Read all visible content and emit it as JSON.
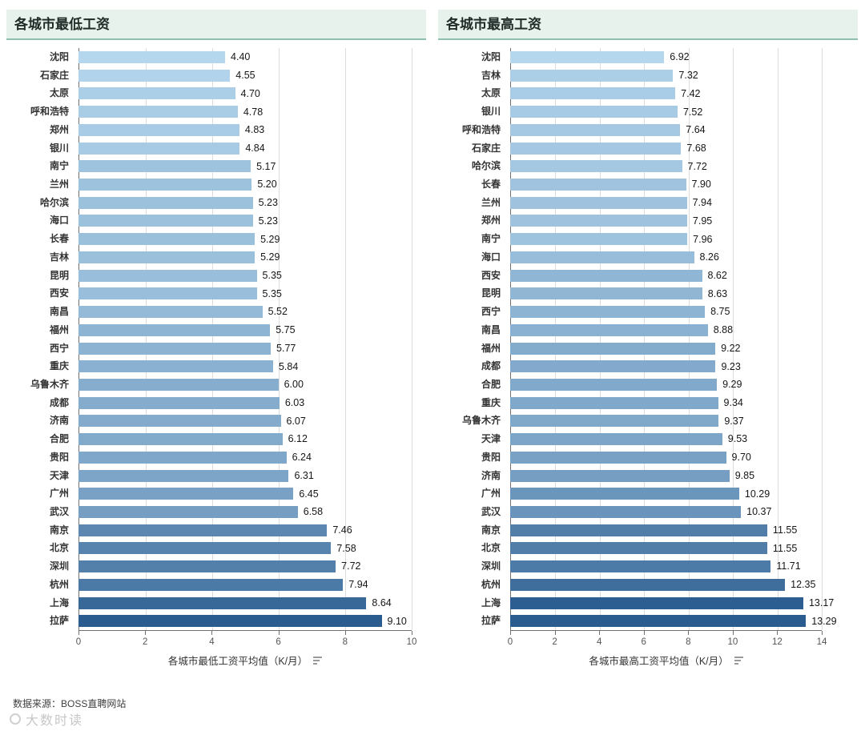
{
  "page": {
    "source_note": "数据来源：BOSS直聘网站",
    "watermark": "大数时读"
  },
  "theme": {
    "header_bg": "#e7f2ec",
    "header_line": "#8fc0ad",
    "title_text": "#1e2b27",
    "label_text": "#333333",
    "value_text": "#161616",
    "tick_text": "#555555",
    "source_text": "#3f3f3f",
    "grid_line": "#dcdcdc",
    "axis_line": "#707070",
    "bar_min": "#b5d7ee",
    "bar_max": "#2a5c8f"
  },
  "chart_data": [
    {
      "type": "bar",
      "orientation": "horizontal",
      "title": "各城市最低工资",
      "xlabel": "各城市最低工资平均值（K/月）",
      "ylabel": "",
      "xlim": [
        0,
        10
      ],
      "xticks": [
        0,
        2,
        4,
        6,
        8,
        10
      ],
      "grid": true,
      "legend": false,
      "color_scale": "sequential-blues-by-value",
      "categories": [
        "沈阳",
        "石家庄",
        "太原",
        "呼和浩特",
        "郑州",
        "银川",
        "南宁",
        "兰州",
        "哈尔滨",
        "海口",
        "长春",
        "吉林",
        "昆明",
        "西安",
        "南昌",
        "福州",
        "西宁",
        "重庆",
        "乌鲁木齐",
        "成都",
        "济南",
        "合肥",
        "贵阳",
        "天津",
        "广州",
        "武汉",
        "南京",
        "北京",
        "深圳",
        "杭州",
        "上海",
        "拉萨"
      ],
      "values": [
        4.4,
        4.55,
        4.7,
        4.78,
        4.83,
        4.84,
        5.17,
        5.2,
        5.23,
        5.23,
        5.29,
        5.29,
        5.35,
        5.35,
        5.52,
        5.75,
        5.77,
        5.84,
        6.0,
        6.03,
        6.07,
        6.12,
        6.24,
        6.31,
        6.45,
        6.58,
        7.46,
        7.58,
        7.72,
        7.94,
        8.64,
        9.1
      ]
    },
    {
      "type": "bar",
      "orientation": "horizontal",
      "title": "各城市最高工资",
      "xlabel": "各城市最高工资平均值（K/月）",
      "ylabel": "",
      "xlim": [
        0,
        14
      ],
      "xticks": [
        0,
        2,
        4,
        6,
        8,
        10,
        12,
        14
      ],
      "grid": true,
      "legend": false,
      "color_scale": "sequential-blues-by-value",
      "categories": [
        "沈阳",
        "吉林",
        "太原",
        "银川",
        "呼和浩特",
        "石家庄",
        "哈尔滨",
        "长春",
        "兰州",
        "郑州",
        "南宁",
        "海口",
        "西安",
        "昆明",
        "西宁",
        "南昌",
        "福州",
        "成都",
        "合肥",
        "重庆",
        "乌鲁木齐",
        "天津",
        "贵阳",
        "济南",
        "广州",
        "武汉",
        "南京",
        "北京",
        "深圳",
        "杭州",
        "上海",
        "拉萨"
      ],
      "values": [
        6.92,
        7.32,
        7.42,
        7.52,
        7.64,
        7.68,
        7.72,
        7.9,
        7.94,
        7.95,
        7.96,
        8.26,
        8.62,
        8.63,
        8.75,
        8.88,
        9.22,
        9.23,
        9.29,
        9.34,
        9.37,
        9.53,
        9.7,
        9.85,
        10.29,
        10.37,
        11.55,
        11.55,
        11.71,
        12.35,
        13.17,
        13.29
      ]
    }
  ]
}
